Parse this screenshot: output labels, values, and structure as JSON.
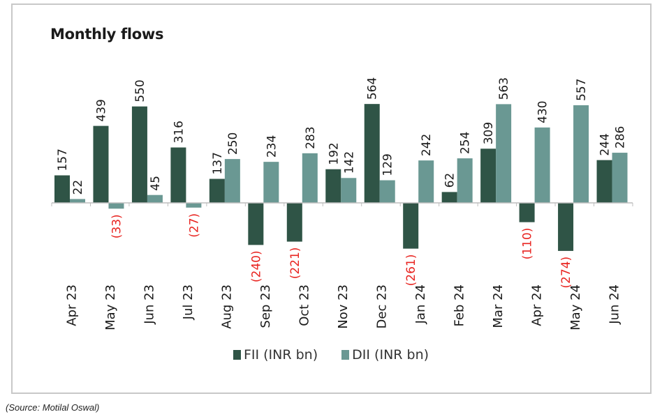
{
  "chart_data": {
    "type": "bar",
    "title": "Monthly flows",
    "categories": [
      "Apr 23",
      "May 23",
      "Jun 23",
      "Jul 23",
      "Aug 23",
      "Sep 23",
      "Oct 23",
      "Nov 23",
      "Dec 23",
      "Jan 24",
      "Feb 24",
      "Mar 24",
      "Apr 24",
      "May 24",
      "Jun 24"
    ],
    "series": [
      {
        "name": "FII (INR bn)",
        "color": "#2f5446",
        "values": [
          157,
          439,
          550,
          316,
          137,
          -240,
          -221,
          192,
          564,
          -261,
          62,
          309,
          -110,
          -274,
          244
        ],
        "labels": [
          "157",
          "439",
          "550",
          "316",
          "137",
          "(240)",
          "(221)",
          "192",
          "564",
          "(261)",
          "62",
          "309",
          "(110)",
          "(274)",
          "244"
        ]
      },
      {
        "name": "DII (INR bn)",
        "color": "#6a9893",
        "values": [
          22,
          -33,
          45,
          -27,
          250,
          234,
          283,
          142,
          129,
          242,
          254,
          563,
          430,
          557,
          286
        ],
        "labels": [
          "22",
          "(33)",
          "45",
          "(27)",
          "250",
          "234",
          "283",
          "142",
          "129",
          "242",
          "254",
          "563",
          "430",
          "557",
          "286"
        ]
      }
    ],
    "negative_label_color": "#e8231f",
    "xlabel": "",
    "ylabel": "",
    "ylim": [
      -560,
      600
    ],
    "grid": false,
    "legend": "bottom"
  },
  "source": "(Source: Motilal Oswal)"
}
